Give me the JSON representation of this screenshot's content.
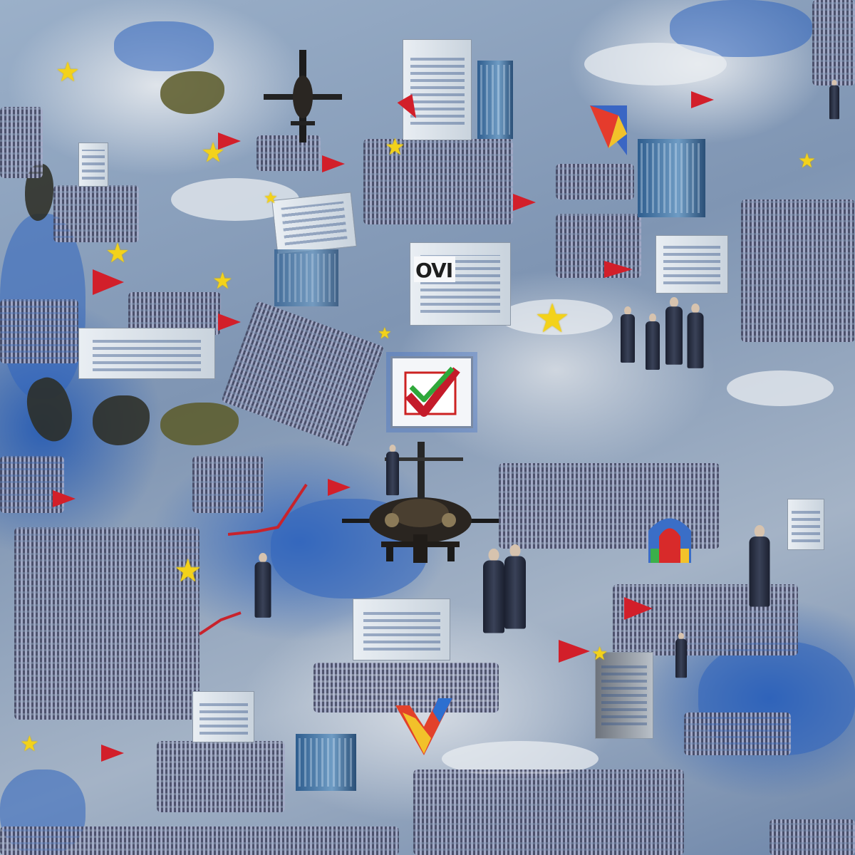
{
  "scene": {
    "kind": "painting",
    "palette": {
      "sky_blue": "#2f65bd",
      "cloud_gray": "#dfe4ea",
      "crowd_gray": "#7b7f9c",
      "flag_red": "#d21f2a",
      "star_yellow": "#f3d21a",
      "land_olive": "#5c5a28"
    },
    "icons": [
      "star-icon",
      "flag-icon",
      "checkmark-icon",
      "helicopter-icon",
      "person-icon",
      "building-icon"
    ],
    "lettering": {
      "ballot_box_top": "OVI",
      "note": "partial painted lettering on a box; reproduced as part of the picture"
    }
  }
}
